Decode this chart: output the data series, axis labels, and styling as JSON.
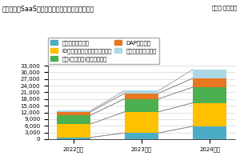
{
  "title": "【図表１】SaaS管理・開発ツール市場規模推移図",
  "unit": "（単位:百万円）",
  "categories": [
    "2022年度",
    "2023年度",
    "2024年度"
  ],
  "series": [
    {
      "name": "一元管理型ツール",
      "color": "#4BACC6",
      "values": [
        800,
        2800,
        5800
      ]
    },
    {
      "name": "ID管理・セキュリティ型ツール",
      "color": "#FFC000",
      "values": [
        6000,
        9500,
        10500
      ]
    },
    {
      "name": "事業(サブスク)管理型ツール",
      "color": "#4CAF50",
      "values": [
        4000,
        5800,
        7000
      ]
    },
    {
      "name": "DAP型ツール",
      "color": "#E87722",
      "values": [
        1500,
        2500,
        4000
      ]
    },
    {
      "name": "開発・連携型ツール",
      "color": "#ADD8E6",
      "values": [
        500,
        1200,
        3900
      ]
    }
  ],
  "ylim": [
    0,
    33000
  ],
  "yticks": [
    0,
    3000,
    6000,
    9000,
    12000,
    15000,
    18000,
    21000,
    24000,
    27000,
    30000,
    33000
  ],
  "bg_color": "#FFFFFF",
  "grid_color": "#CCCCCC",
  "title_fontsize": 5.8,
  "unit_fontsize": 5.0,
  "legend_fontsize": 5.0,
  "tick_fontsize": 5.0
}
